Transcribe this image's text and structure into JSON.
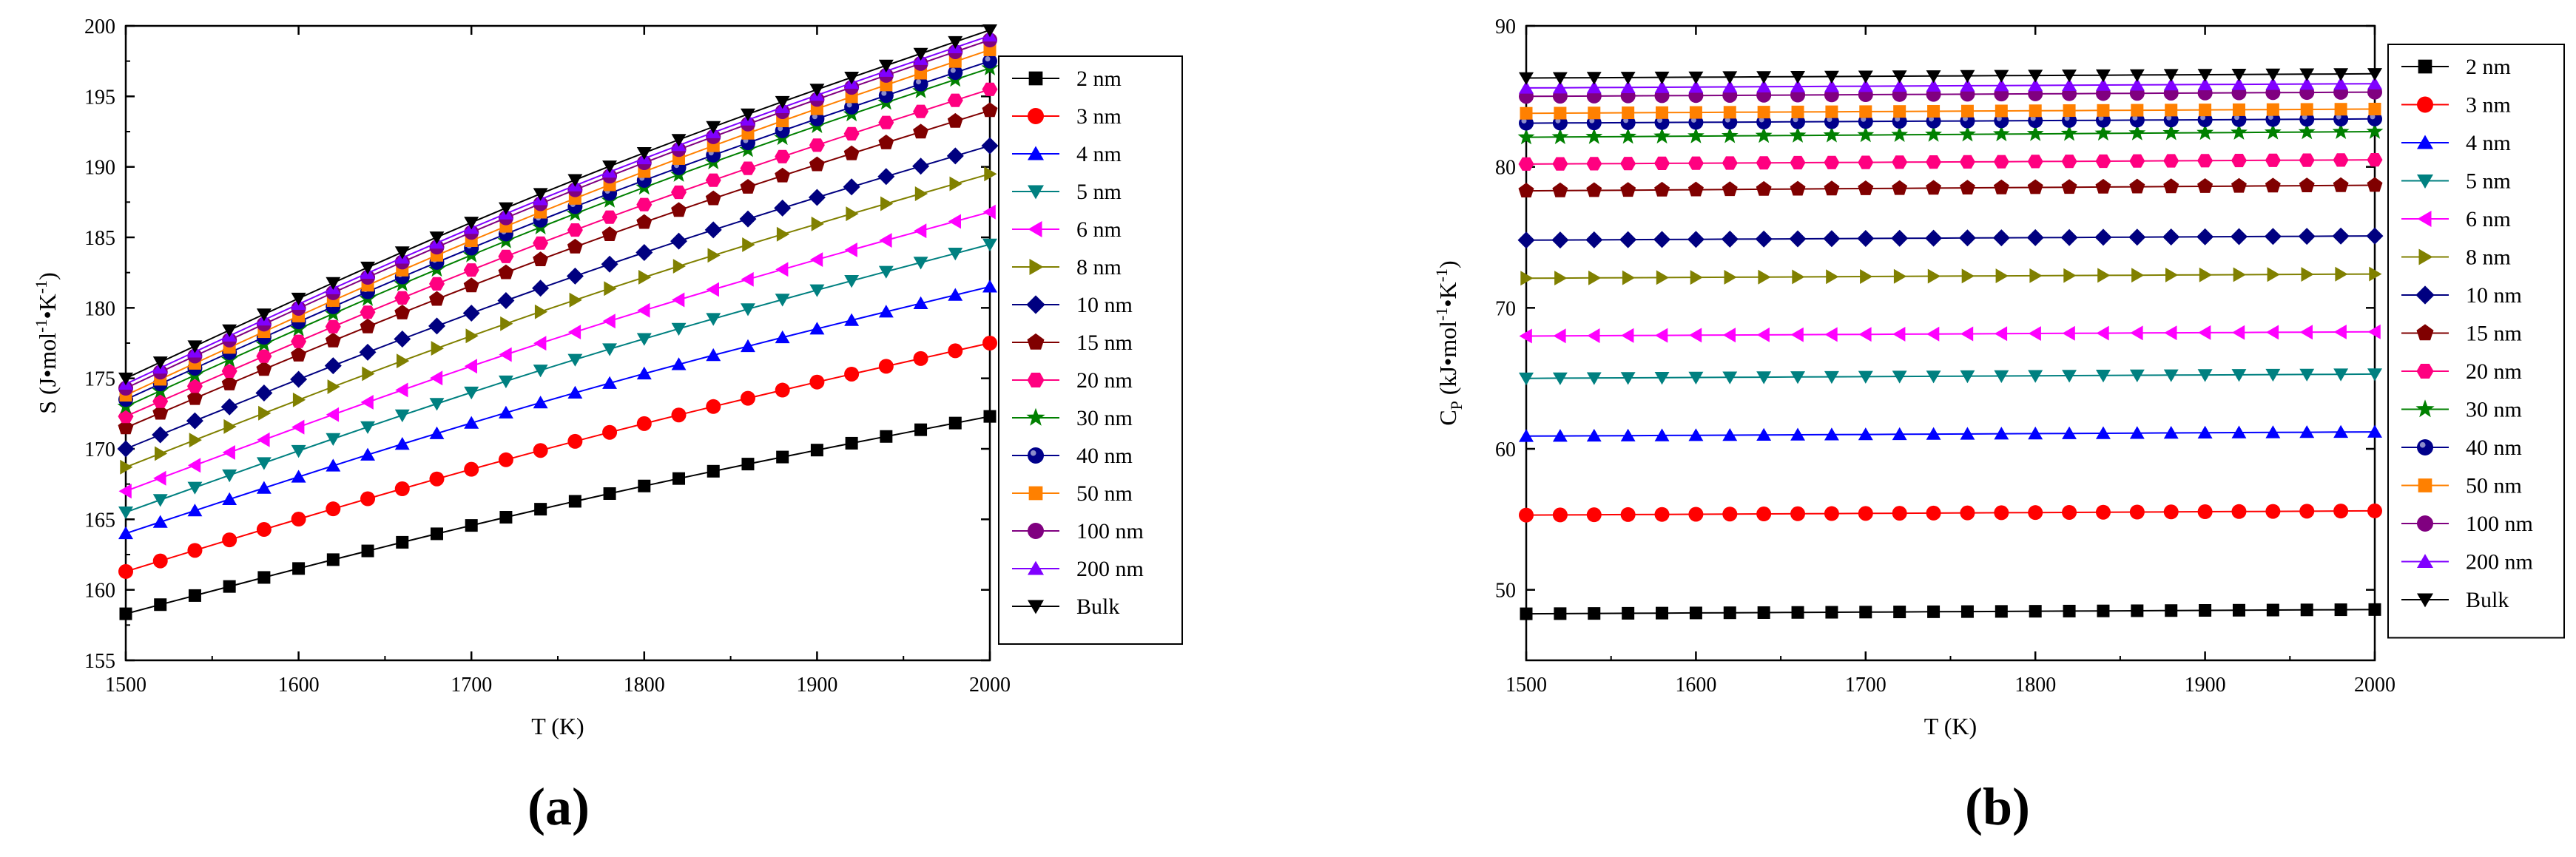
{
  "figure": {
    "panel_a_label": "(a)",
    "panel_b_label": "(b)"
  },
  "chart_data": [
    {
      "type": "line",
      "panel": "a",
      "title": "",
      "xlabel": "T (K)",
      "ylabel": "S (J•mol⁻¹•K⁻¹)",
      "ylabel_parts": {
        "main": "S (J•mol",
        "sup1": "-1",
        "mid": "•K",
        "sup2": "-1",
        "end": ")"
      },
      "xlim": [
        1500,
        2000
      ],
      "ylim": [
        155,
        200
      ],
      "xticks": [
        1500,
        1600,
        1700,
        1800,
        1900,
        2000
      ],
      "yticks": [
        155,
        160,
        165,
        170,
        175,
        180,
        185,
        190,
        195,
        200
      ],
      "x": [
        1500,
        1520,
        1540,
        1560,
        1580,
        1600,
        1620,
        1640,
        1660,
        1680,
        1700,
        1720,
        1740,
        1760,
        1780,
        1800,
        1820,
        1840,
        1860,
        1880,
        1900,
        1920,
        1940,
        1960,
        1980,
        2000
      ],
      "legend_position": "right-outside",
      "series": [
        {
          "name": "2 nm",
          "start": 158.3,
          "end": 172.3
        },
        {
          "name": "3 nm",
          "start": 161.3,
          "end": 177.5
        },
        {
          "name": "4 nm",
          "start": 164.0,
          "end": 181.5
        },
        {
          "name": "5 nm",
          "start": 165.5,
          "end": 184.5
        },
        {
          "name": "6 nm",
          "start": 167.0,
          "end": 186.8
        },
        {
          "name": "8 nm",
          "start": 168.7,
          "end": 189.5
        },
        {
          "name": "10 nm",
          "start": 170.0,
          "end": 191.5
        },
        {
          "name": "15 nm",
          "start": 171.5,
          "end": 194.0
        },
        {
          "name": "20 nm",
          "start": 172.3,
          "end": 195.5
        },
        {
          "name": "30 nm",
          "start": 173.0,
          "end": 197.0
        },
        {
          "name": "40 nm",
          "start": 173.5,
          "end": 197.5
        },
        {
          "name": "50 nm",
          "start": 173.8,
          "end": 198.3
        },
        {
          "name": "100 nm",
          "start": 174.3,
          "end": 199.0
        },
        {
          "name": "200 nm",
          "start": 174.6,
          "end": 199.3
        },
        {
          "name": "Bulk",
          "start": 175.0,
          "end": 199.7
        }
      ]
    },
    {
      "type": "line",
      "panel": "b",
      "title": "",
      "xlabel": "T (K)",
      "ylabel": "Cₚ (kJ•mol⁻¹•K⁻¹)",
      "ylabel_parts": {
        "main": "C",
        "sub": "P",
        "mid0": " (kJ•mol",
        "sup1": "-1",
        "mid": "•K",
        "sup2": "-1",
        "end": ")"
      },
      "xlim": [
        1500,
        2000
      ],
      "ylim": [
        45,
        90
      ],
      "xticks": [
        1500,
        1600,
        1700,
        1800,
        1900,
        2000
      ],
      "yticks": [
        50,
        60,
        70,
        80,
        90
      ],
      "x": [
        1500,
        1520,
        1540,
        1560,
        1580,
        1600,
        1620,
        1640,
        1660,
        1680,
        1700,
        1720,
        1740,
        1760,
        1780,
        1800,
        1820,
        1840,
        1860,
        1880,
        1900,
        1920,
        1940,
        1960,
        1980,
        2000
      ],
      "legend_position": "right-outside",
      "series": [
        {
          "name": "2 nm",
          "start": 48.3,
          "end": 48.6
        },
        {
          "name": "3 nm",
          "start": 55.3,
          "end": 55.6
        },
        {
          "name": "4 nm",
          "start": 60.9,
          "end": 61.2
        },
        {
          "name": "5 nm",
          "start": 65.0,
          "end": 65.3
        },
        {
          "name": "6 nm",
          "start": 68.0,
          "end": 68.3
        },
        {
          "name": "8 nm",
          "start": 72.1,
          "end": 72.4
        },
        {
          "name": "10 nm",
          "start": 74.8,
          "end": 75.1
        },
        {
          "name": "15 nm",
          "start": 78.3,
          "end": 78.7
        },
        {
          "name": "20 nm",
          "start": 80.2,
          "end": 80.5
        },
        {
          "name": "30 nm",
          "start": 82.1,
          "end": 82.5
        },
        {
          "name": "40 nm",
          "start": 83.1,
          "end": 83.4
        },
        {
          "name": "50 nm",
          "start": 83.8,
          "end": 84.1
        },
        {
          "name": "100 nm",
          "start": 85.0,
          "end": 85.3
        },
        {
          "name": "200 nm",
          "start": 85.6,
          "end": 85.9
        },
        {
          "name": "Bulk",
          "start": 86.3,
          "end": 86.6
        }
      ]
    }
  ],
  "styles": [
    {
      "name": "2 nm",
      "color": "#000000",
      "marker": "square"
    },
    {
      "name": "3 nm",
      "color": "#ff0000",
      "marker": "circle"
    },
    {
      "name": "4 nm",
      "color": "#0000ff",
      "marker": "triangle-up"
    },
    {
      "name": "5 nm",
      "color": "#008080",
      "marker": "triangle-down"
    },
    {
      "name": "6 nm",
      "color": "#ff00ff",
      "marker": "triangle-left"
    },
    {
      "name": "8 nm",
      "color": "#808000",
      "marker": "triangle-right"
    },
    {
      "name": "10 nm",
      "color": "#000080",
      "marker": "diamond"
    },
    {
      "name": "15 nm",
      "color": "#800000",
      "marker": "pentagon"
    },
    {
      "name": "20 nm",
      "color": "#ff0080",
      "marker": "hexagon"
    },
    {
      "name": "30 nm",
      "color": "#008000",
      "marker": "star"
    },
    {
      "name": "40 nm",
      "color": "#00008b",
      "marker": "sphere"
    },
    {
      "name": "50 nm",
      "color": "#ff8000",
      "marker": "square"
    },
    {
      "name": "100 nm",
      "color": "#800080",
      "marker": "circle"
    },
    {
      "name": "200 nm",
      "color": "#8000ff",
      "marker": "triangle-up"
    },
    {
      "name": "Bulk",
      "color": "#000000",
      "marker": "triangle-down"
    }
  ]
}
